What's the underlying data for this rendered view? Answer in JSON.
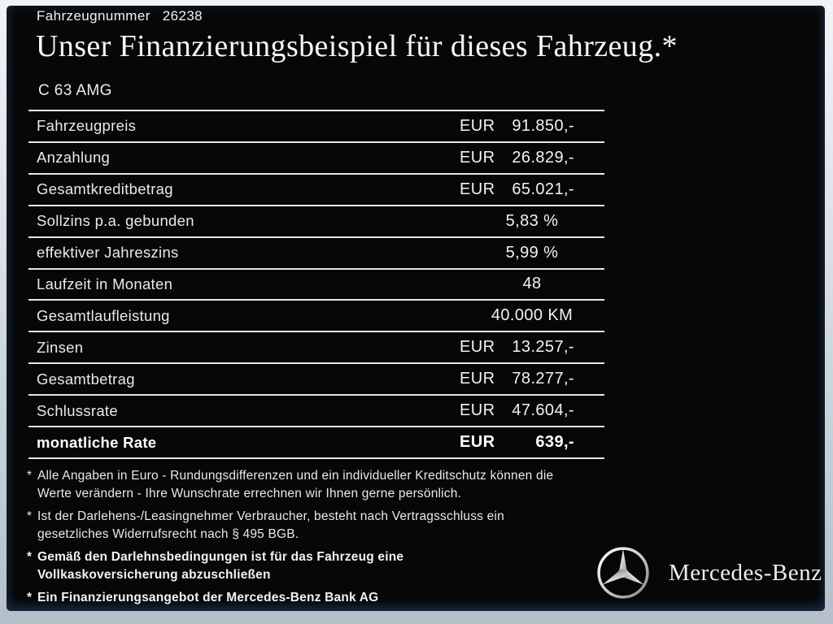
{
  "header": {
    "vehicle_number_label": "Fahrzeugnummer",
    "vehicle_number": "26238",
    "title": "Unser Finanzierungsbeispiel für dieses Fahrzeug.*",
    "model": "C 63 AMG"
  },
  "table": {
    "rows": [
      {
        "label": "Fahrzeugpreis",
        "currency": "EUR",
        "value": "91.850,-",
        "bold": false
      },
      {
        "label": "Anzahlung",
        "currency": "EUR",
        "value": "26.829,-",
        "bold": false
      },
      {
        "label": "Gesamtkreditbetrag",
        "currency": "EUR",
        "value": "65.021,-",
        "bold": false
      },
      {
        "label": "Sollzins p.a. gebunden",
        "currency": "",
        "value": "5,83 %",
        "bold": false
      },
      {
        "label": "effektiver Jahreszins",
        "currency": "",
        "value": "5,99 %",
        "bold": false
      },
      {
        "label": "Laufzeit in Monaten",
        "currency": "",
        "value": "48",
        "bold": false
      },
      {
        "label": "Gesamtlaufleistung",
        "currency": "",
        "value": "40.000 KM",
        "bold": false
      },
      {
        "label": "Zinsen",
        "currency": "EUR",
        "value": "13.257,-",
        "bold": false
      },
      {
        "label": "Gesamtbetrag",
        "currency": "EUR",
        "value": "78.277,-",
        "bold": false
      },
      {
        "label": "Schlussrate",
        "currency": "EUR",
        "value": "47.604,-",
        "bold": false
      },
      {
        "label": "monatliche Rate",
        "currency": "EUR",
        "value": "639,-",
        "bold": true
      }
    ]
  },
  "footnotes": [
    {
      "marker": "*",
      "bold": false,
      "lines": [
        "Alle Angaben in Euro - Rundungsdifferenzen und ein individueller Kreditschutz können die",
        "Werte verändern - Ihre Wunschrate errechnen wir Ihnen gerne persönlich."
      ]
    },
    {
      "marker": "*",
      "bold": false,
      "lines": [
        "Ist der Darlehens-/Leasingnehmer Verbraucher, besteht nach Vertragsschluss ein",
        "gesetzliches Widerrufsrecht nach § 495 BGB."
      ]
    },
    {
      "marker": "*",
      "bold": true,
      "lines": [
        "Gemäß den Darlehnsbedingungen ist für das Fahrzeug eine",
        "Vollkaskoversicherung abzuschließen"
      ]
    },
    {
      "marker": "*",
      "bold": true,
      "lines": [
        "Ein Finanzierungsangebot der Mercedes-Benz Bank AG"
      ]
    }
  ],
  "brand": {
    "wordmark": "Mercedes-Benz",
    "logo_icon": "mercedes-star-icon"
  },
  "colors": {
    "panel_background": "#070707",
    "frame_top": "#f0f4f7",
    "frame_bottom": "#b5bfc9",
    "divider": "#e3e7ea",
    "text": "#efefef"
  }
}
